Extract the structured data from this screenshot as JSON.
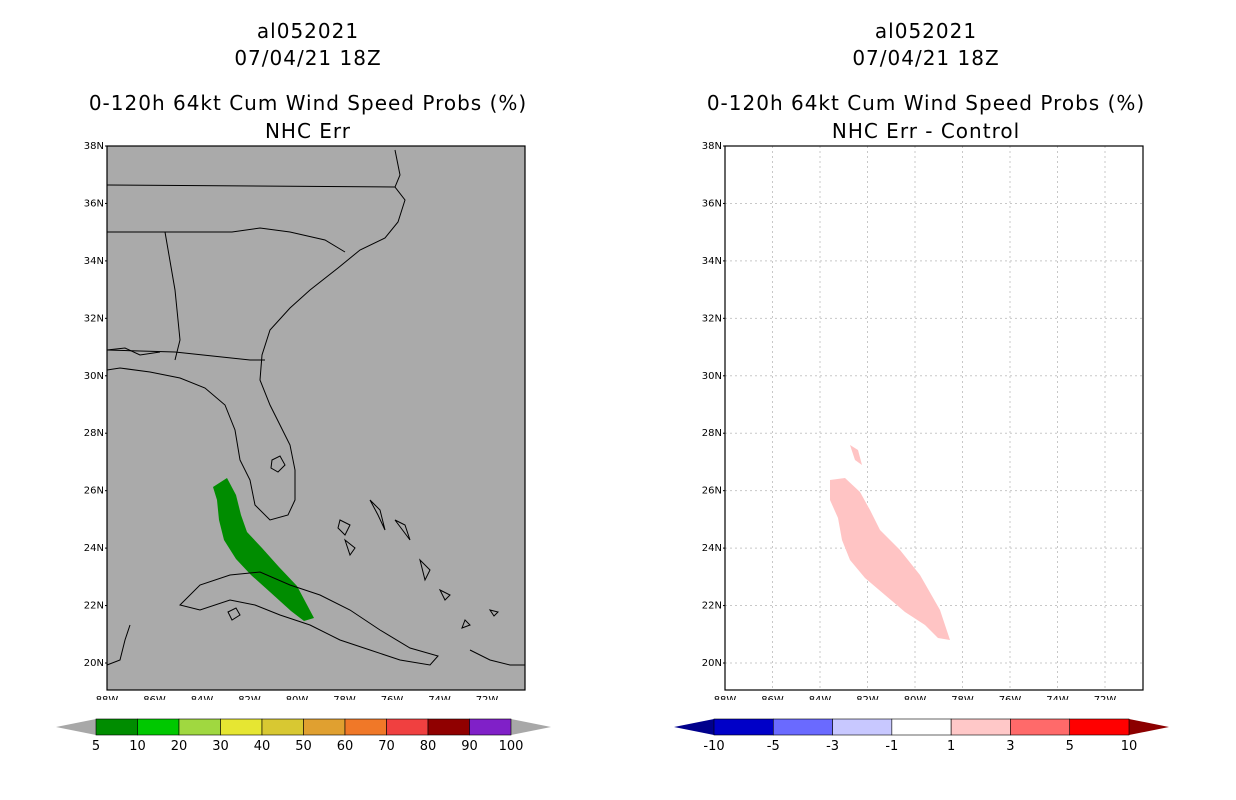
{
  "left_panel": {
    "title_line1": "al052021",
    "title_line2": "07/04/21 18Z",
    "title_line3": "0-120h 64kt Cum Wind Speed Probs (%)",
    "title_line4": "NHC Err",
    "background_color": "#aaaaaa",
    "colorbar": {
      "labels": [
        "5",
        "10",
        "20",
        "30",
        "40",
        "50",
        "60",
        "70",
        "80",
        "90",
        "100"
      ],
      "colors": [
        "#008c00",
        "#00c800",
        "#a0d840",
        "#e6e632",
        "#d8c832",
        "#e0a030",
        "#f07828",
        "#f04040",
        "#900000",
        "#8020c8"
      ],
      "under_color": "#a8a8a8",
      "over_color": "#a8a8a8"
    },
    "swath_color": "#008c00"
  },
  "right_panel": {
    "title_line1": "al052021",
    "title_line2": "07/04/21 18Z",
    "title_line3": "0-120h 64kt Cum Wind Speed Probs (%)",
    "title_line4": "NHC Err - Control",
    "background_color": "#ffffff",
    "colorbar": {
      "labels": [
        "-10",
        "-5",
        "-3",
        "-1",
        "1",
        "3",
        "5",
        "10"
      ],
      "colors": [
        "#0000c8",
        "#6a6aff",
        "#c8c8ff",
        "#ffffff",
        "#ffc8c8",
        "#ff6a6a",
        "#ff0000"
      ],
      "under_color": "#00008c",
      "over_color": "#8c0000"
    },
    "swath_color": "#ffc4c4"
  },
  "axes": {
    "lat_labels": [
      "38N",
      "36N",
      "34N",
      "32N",
      "30N",
      "28N",
      "26N",
      "24N",
      "22N",
      "20N"
    ],
    "lon_labels": [
      "88W",
      "86W",
      "84W",
      "82W",
      "80W",
      "78W",
      "76W",
      "74W",
      "72W"
    ]
  }
}
